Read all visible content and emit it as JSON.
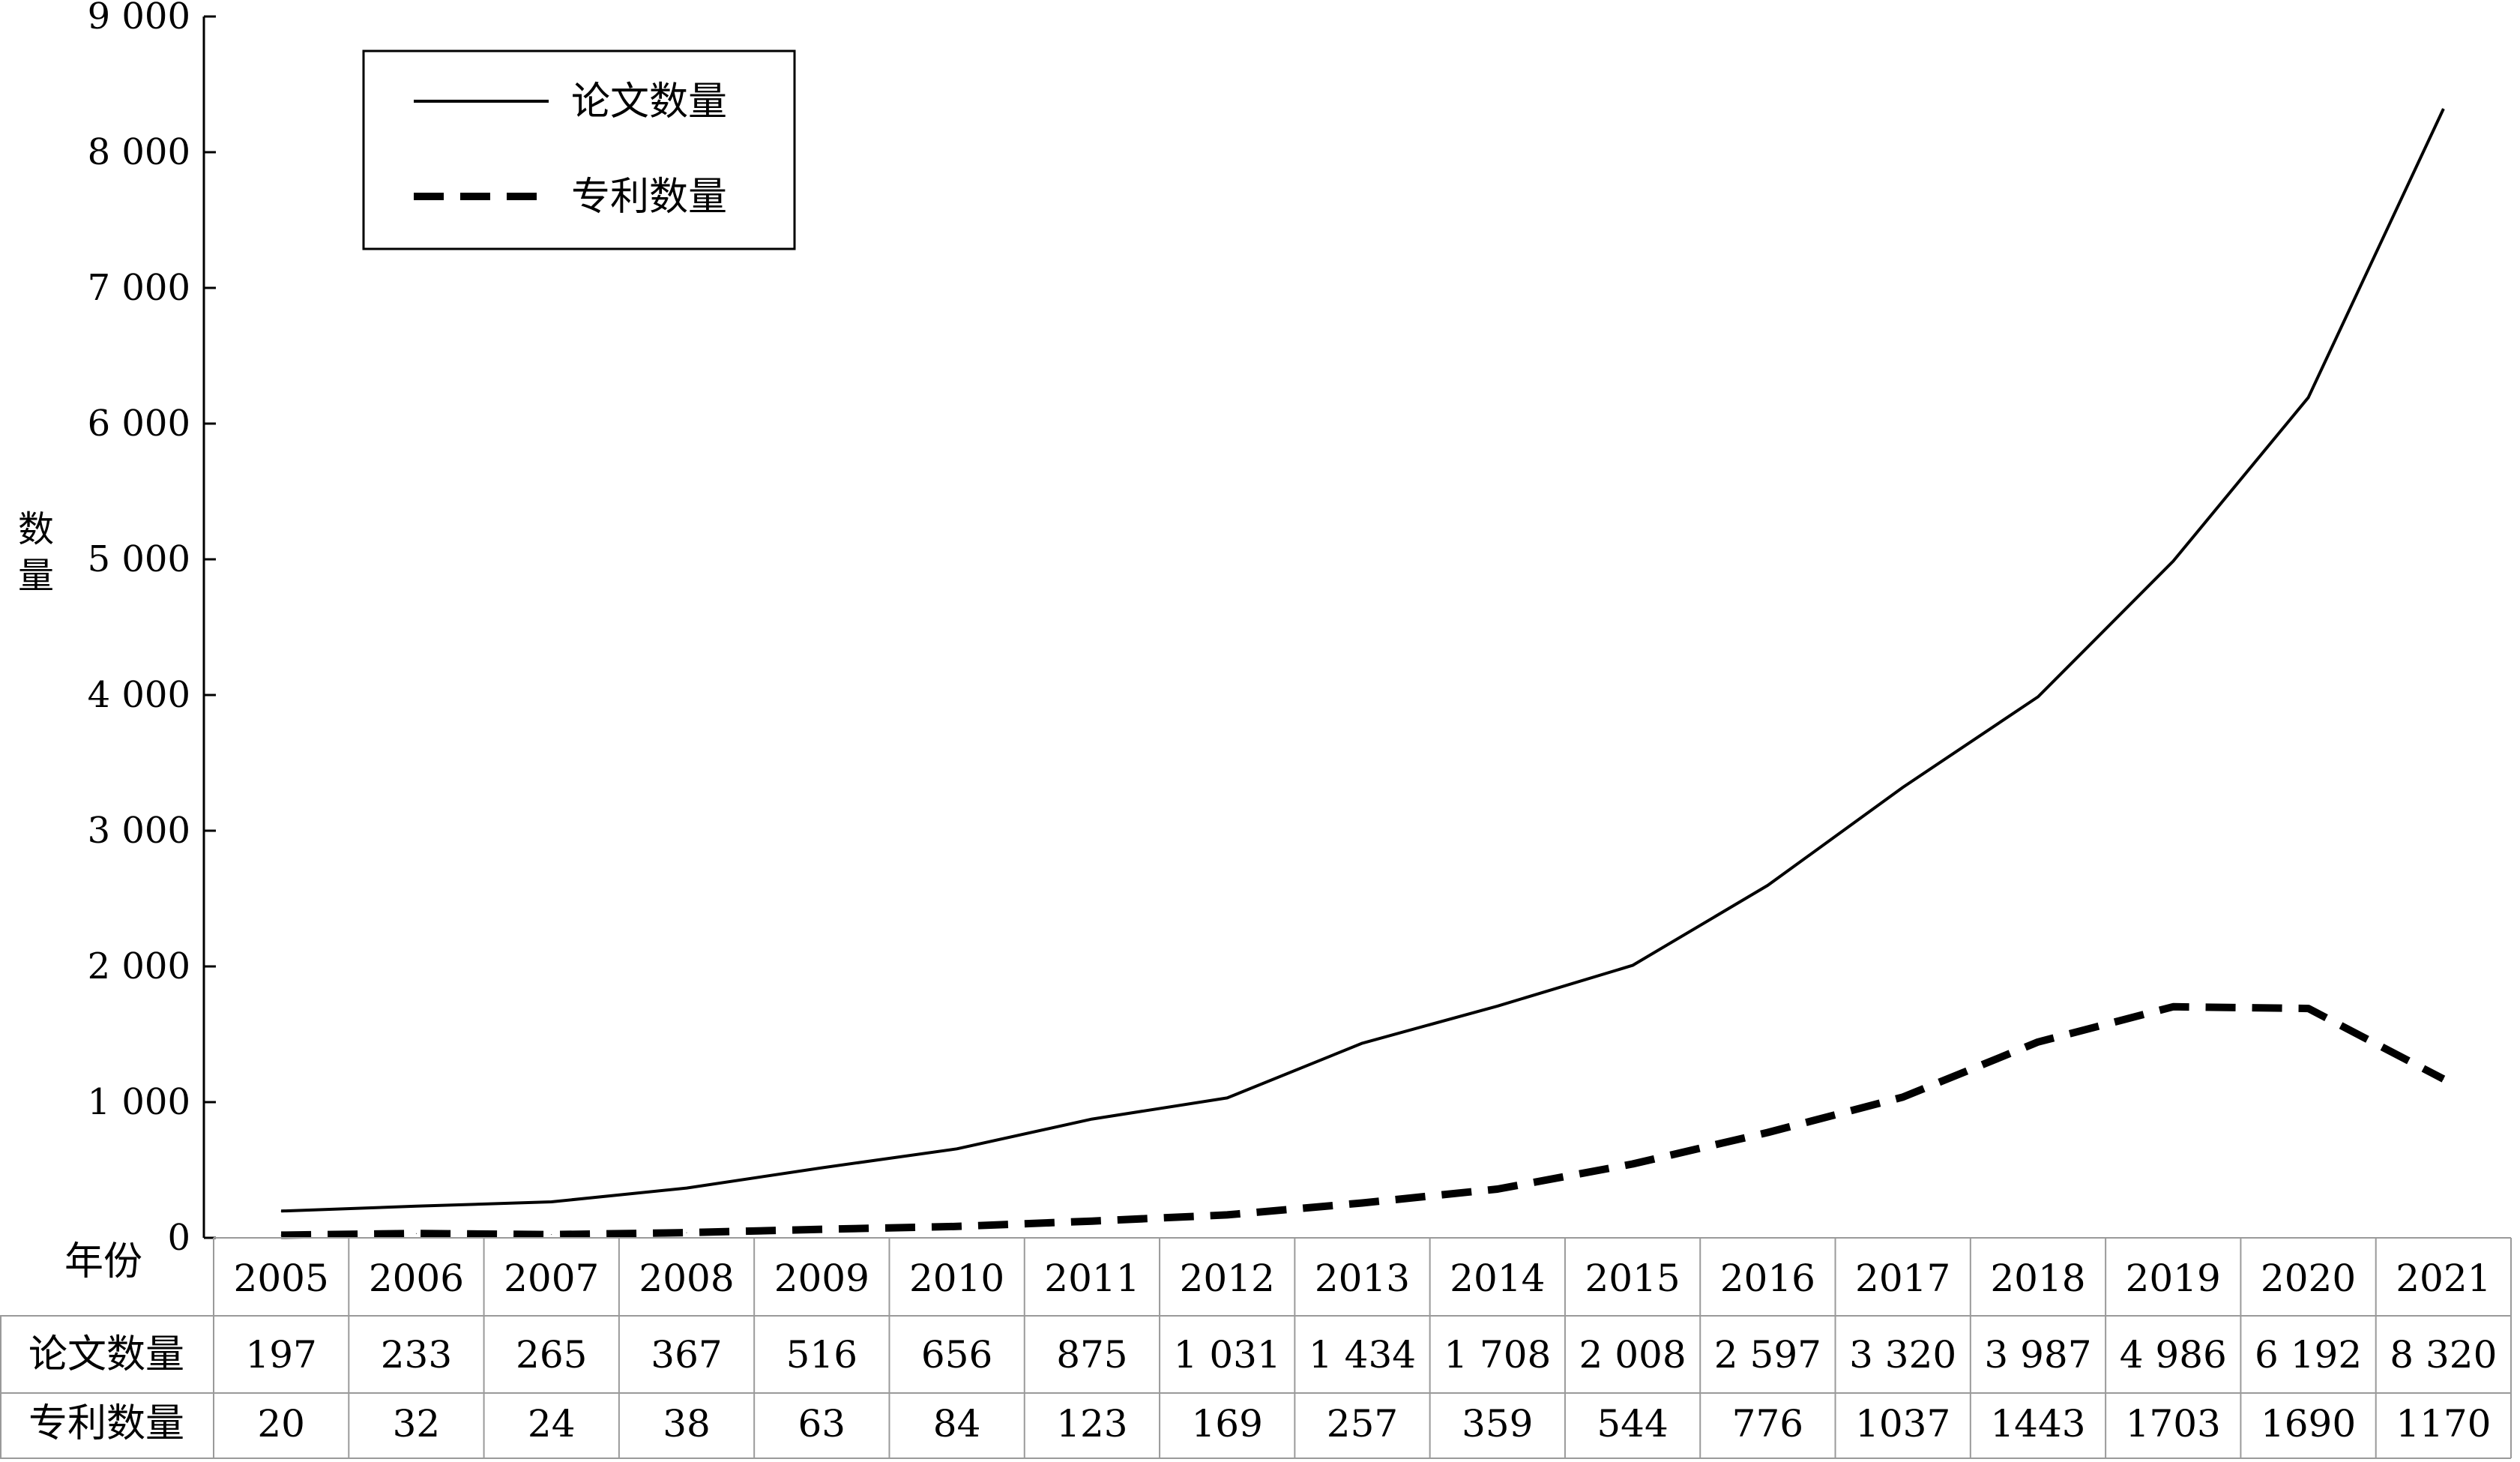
{
  "chart_data": {
    "type": "line",
    "ylabel": "数量",
    "xlabel": "年份",
    "ylim": [
      0,
      9000
    ],
    "yticks": [
      0,
      1000,
      2000,
      3000,
      4000,
      5000,
      6000,
      7000,
      8000,
      9000
    ],
    "ytick_labels": [
      "0",
      "1 000",
      "2 000",
      "3 000",
      "4 000",
      "5 000",
      "6 000",
      "7 000",
      "8 000",
      "9 000"
    ],
    "x": [
      "2005",
      "2006",
      "2007",
      "2008",
      "2009",
      "2010",
      "2011",
      "2012",
      "2013",
      "2014",
      "2015",
      "2016",
      "2017",
      "2018",
      "2019",
      "2020",
      "2021"
    ],
    "series": [
      {
        "name": "论文数量",
        "style": "solid",
        "color": "#000000",
        "values": [
          197,
          233,
          265,
          367,
          516,
          656,
          875,
          1031,
          1434,
          1708,
          2008,
          2597,
          3320,
          3987,
          4986,
          6192,
          8320
        ],
        "labels": [
          "197",
          "233",
          "265",
          "367",
          "516",
          "656",
          "875",
          "1 031",
          "1 434",
          "1 708",
          "2 008",
          "2 597",
          "3 320",
          "3 987",
          "4 986",
          "6 192",
          "8 320"
        ]
      },
      {
        "name": "专利数量",
        "style": "dashed",
        "color": "#000000",
        "values": [
          20,
          32,
          24,
          38,
          63,
          84,
          123,
          169,
          257,
          359,
          544,
          776,
          1037,
          1443,
          1703,
          1690,
          1170
        ],
        "labels": [
          "20",
          "32",
          "24",
          "38",
          "63",
          "84",
          "123",
          "169",
          "257",
          "359",
          "544",
          "776",
          "1037",
          "1443",
          "1703",
          "1690",
          "1170"
        ]
      }
    ],
    "legend": "top-left",
    "grid": false,
    "data_table": true
  }
}
